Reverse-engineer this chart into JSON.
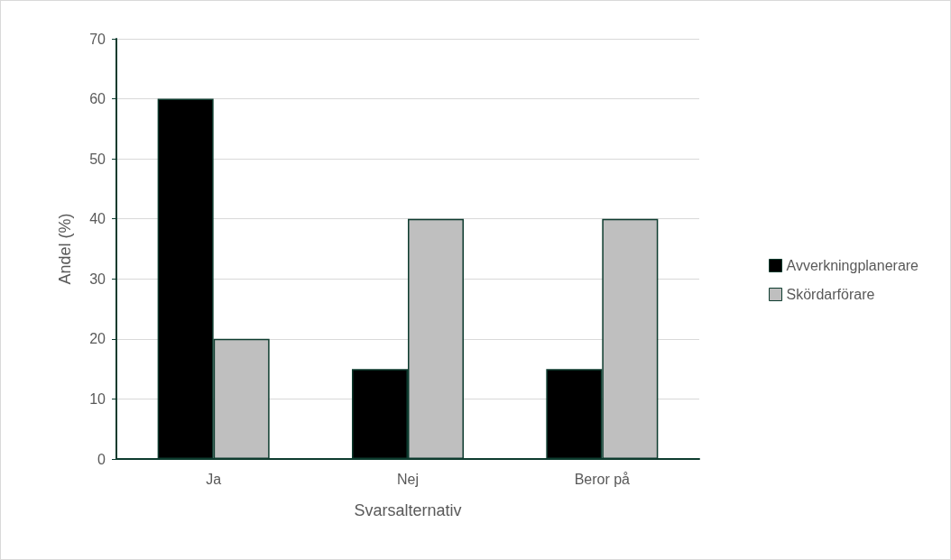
{
  "chart_data": {
    "type": "bar",
    "xlabel": "Svarsalternativ",
    "ylabel": "Andel (%)",
    "categories": [
      "Ja",
      "Nej",
      "Beror på"
    ],
    "series": [
      {
        "name": "Avverkningplanerare",
        "color": "#000000",
        "values": [
          60,
          15,
          15
        ]
      },
      {
        "name": "Skördarförare",
        "color": "#bfbfbf",
        "values": [
          20,
          40,
          40
        ]
      }
    ],
    "ylim": [
      0,
      70
    ],
    "yticks": [
      0,
      10,
      20,
      30,
      40,
      50,
      60,
      70
    ],
    "grid": "y",
    "legend": "right"
  }
}
